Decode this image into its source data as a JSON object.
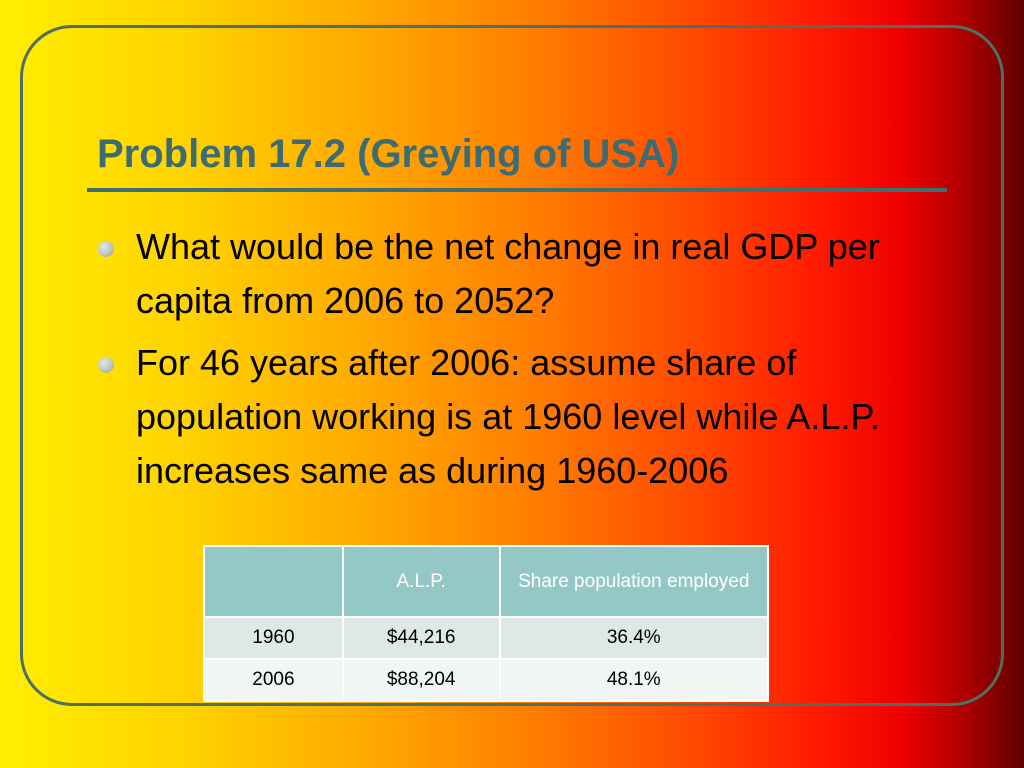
{
  "slide": {
    "title": "Problem 17.2 (Greying of USA)",
    "bullets": [
      "What would be the net change in real GDP per capita from 2006 to 2052?",
      "For 46 years after 2006: assume share of population working is at 1960 level while A.L.P. increases same as during 1960-2006"
    ]
  },
  "table": {
    "headers": [
      "",
      "A.L.P.",
      "Share population employed"
    ],
    "rows": [
      [
        "1960",
        "$44,216",
        "36.4%"
      ],
      [
        "2006",
        "$88,204",
        "48.1%"
      ]
    ]
  },
  "colors": {
    "title": "#3d6b73",
    "frame": "#4f6f63",
    "table_header_bg": "#93c8c6",
    "table_row_even": "#dde8e7",
    "table_row_odd": "#f2f5f5"
  }
}
